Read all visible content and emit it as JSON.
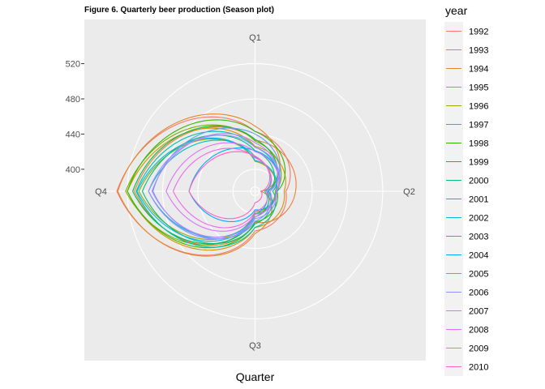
{
  "chart_data": {
    "type": "line",
    "coordinates": "polar",
    "title": "Figure 6. Quarterly beer production (Season plot)",
    "xlabel": "Quarter",
    "ylabel": "",
    "categories": [
      "Q1",
      "Q2",
      "Q3",
      "Q4"
    ],
    "y_ticks": [
      400,
      440,
      480,
      520
    ],
    "ylim": [
      375,
      550
    ],
    "grid": true,
    "legend": {
      "title": "year",
      "position": "right"
    },
    "series": [
      {
        "name": "1992",
        "color": "#F8766D",
        "values": [
          443,
          410,
          420,
          532
        ]
      },
      {
        "name": "1993",
        "color": "#EE7E3A",
        "values": [
          433,
          421,
          410,
          512
        ]
      },
      {
        "name": "1994",
        "color": "#E08A2A",
        "values": [
          449,
          381,
          423,
          531
        ]
      },
      {
        "name": "1995",
        "color": "#CD9600",
        "values": [
          426,
          408,
          416,
          520
        ]
      },
      {
        "name": "1996",
        "color": "#A3A500",
        "values": [
          409,
          398,
          398,
          507
        ]
      },
      {
        "name": "1997",
        "color": "#7CAE00",
        "values": [
          432,
          398,
          400,
          522
        ]
      },
      {
        "name": "1998",
        "color": "#39B600",
        "values": [
          443,
          400,
          410,
          520
        ]
      },
      {
        "name": "1999",
        "color": "#00BB4E",
        "values": [
          434,
          388,
          404,
          514
        ]
      },
      {
        "name": "2000",
        "color": "#00BF7D",
        "values": [
          421,
          390,
          412,
          503
        ]
      },
      {
        "name": "2001",
        "color": "#00C1A3",
        "values": [
          425,
          395,
          416,
          510
        ]
      },
      {
        "name": "2002",
        "color": "#00BFC4",
        "values": [
          414,
          386,
          401,
          496
        ]
      },
      {
        "name": "2003",
        "color": "#00B8E7",
        "values": [
          410,
          399,
          401,
          509
        ]
      },
      {
        "name": "2004",
        "color": "#00A9FF",
        "values": [
          421,
          400,
          396,
          450
        ]
      },
      {
        "name": "2005",
        "color": "#619CFF",
        "values": [
          440,
          389,
          409,
          491
        ]
      },
      {
        "name": "2006",
        "color": "#9590FF",
        "values": [
          425,
          399,
          406,
          496
        ]
      },
      {
        "name": "2007",
        "color": "#B983FF",
        "values": [
          430,
          392,
          404,
          492
        ]
      },
      {
        "name": "2008",
        "color": "#DB72FB",
        "values": [
          420,
          399,
          401,
          476
        ]
      },
      {
        "name": "2009",
        "color": "#EF67EB",
        "values": [
          413,
          388,
          398,
          468
        ]
      },
      {
        "name": "2010",
        "color": "#FF61C3",
        "values": [
          415,
          382,
          388,
          450
        ]
      }
    ]
  }
}
